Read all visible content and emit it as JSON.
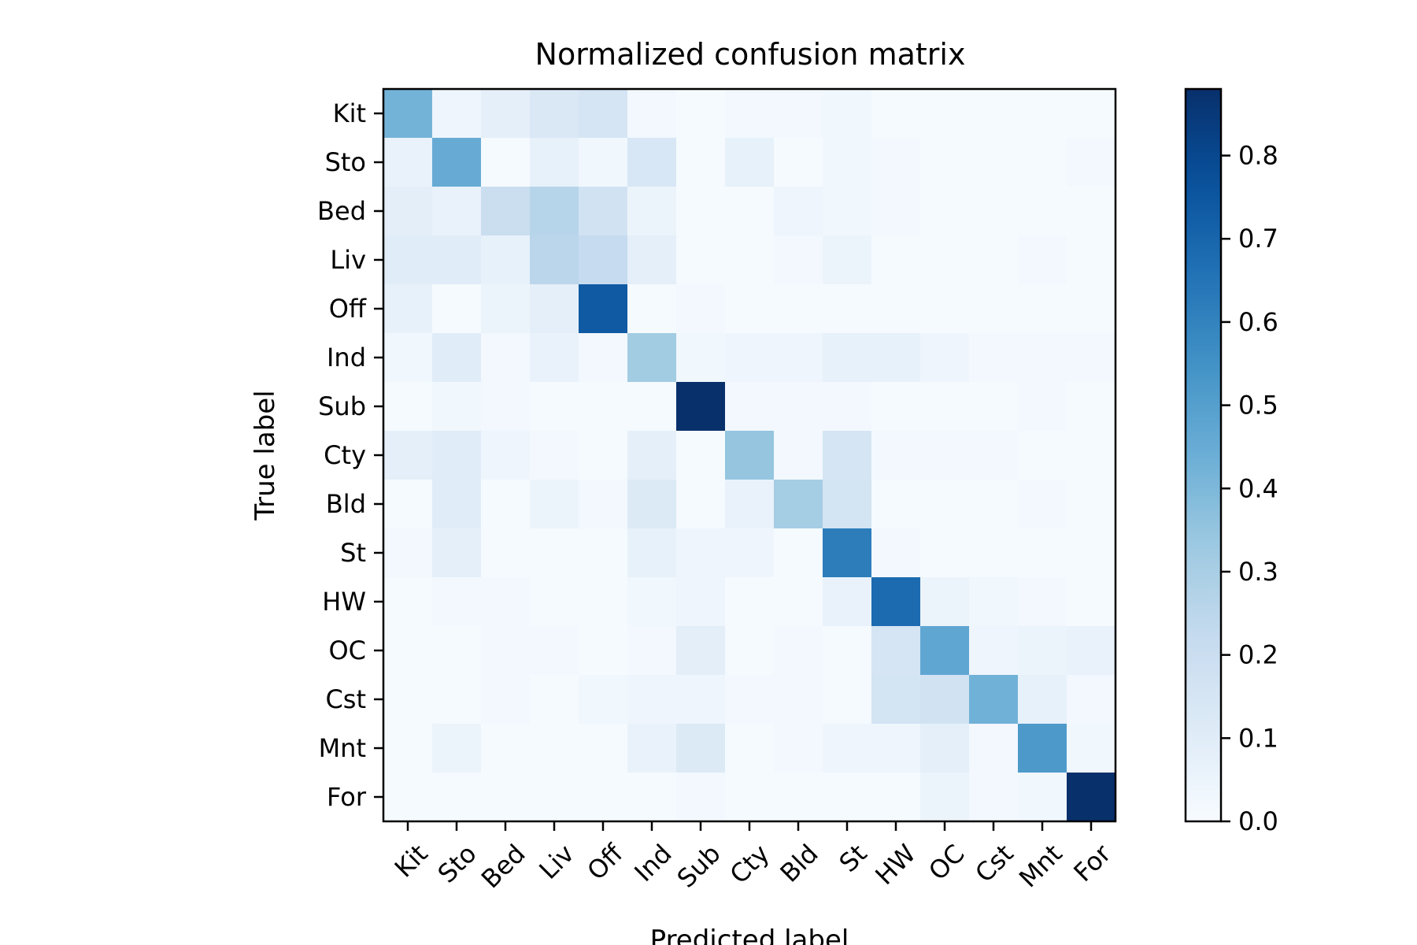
{
  "chart_data": {
    "type": "heatmap",
    "title": "Normalized confusion matrix",
    "xlabel": "Predicted label",
    "ylabel": "True label",
    "categories": [
      "Kit",
      "Sto",
      "Bed",
      "Liv",
      "Off",
      "Ind",
      "Sub",
      "Cty",
      "Bld",
      "St",
      "HW",
      "OC",
      "Cst",
      "Mnt",
      "For"
    ],
    "colorbar": {
      "min": 0.0,
      "max": 0.88,
      "ticks": [
        0.0,
        0.1,
        0.2,
        0.3,
        0.4,
        0.5,
        0.6,
        0.7,
        0.8
      ],
      "tick_labels": [
        "0.0",
        "0.1",
        "0.2",
        "0.3",
        "0.4",
        "0.5",
        "0.6",
        "0.7",
        "0.8"
      ]
    },
    "colormap": "Blues",
    "matrix": [
      [
        0.42,
        0.04,
        0.08,
        0.13,
        0.15,
        0.02,
        0.01,
        0.02,
        0.02,
        0.03,
        0.01,
        0.01,
        0.01,
        0.01,
        0.01
      ],
      [
        0.06,
        0.45,
        0.01,
        0.07,
        0.03,
        0.14,
        0.01,
        0.07,
        0.01,
        0.03,
        0.02,
        0.01,
        0.01,
        0.01,
        0.02
      ],
      [
        0.09,
        0.06,
        0.2,
        0.26,
        0.17,
        0.05,
        0.01,
        0.01,
        0.04,
        0.03,
        0.02,
        0.01,
        0.01,
        0.01,
        0.01
      ],
      [
        0.1,
        0.1,
        0.07,
        0.25,
        0.22,
        0.08,
        0.01,
        0.01,
        0.02,
        0.05,
        0.01,
        0.01,
        0.01,
        0.02,
        0.01
      ],
      [
        0.07,
        0.01,
        0.05,
        0.08,
        0.74,
        0.01,
        0.02,
        0.01,
        0.01,
        0.01,
        0.01,
        0.01,
        0.01,
        0.01,
        0.01
      ],
      [
        0.03,
        0.1,
        0.02,
        0.06,
        0.02,
        0.32,
        0.03,
        0.04,
        0.04,
        0.07,
        0.07,
        0.04,
        0.02,
        0.02,
        0.02
      ],
      [
        0.01,
        0.03,
        0.02,
        0.01,
        0.01,
        0.01,
        0.88,
        0.02,
        0.02,
        0.02,
        0.01,
        0.01,
        0.01,
        0.02,
        0.01
      ],
      [
        0.08,
        0.1,
        0.04,
        0.02,
        0.01,
        0.08,
        0.01,
        0.35,
        0.02,
        0.15,
        0.02,
        0.02,
        0.02,
        0.01,
        0.01
      ],
      [
        0.01,
        0.1,
        0.01,
        0.05,
        0.02,
        0.12,
        0.01,
        0.06,
        0.31,
        0.16,
        0.01,
        0.01,
        0.01,
        0.02,
        0.01
      ],
      [
        0.02,
        0.08,
        0.01,
        0.01,
        0.01,
        0.07,
        0.04,
        0.04,
        0.01,
        0.62,
        0.02,
        0.01,
        0.01,
        0.01,
        0.01
      ],
      [
        0.01,
        0.02,
        0.02,
        0.01,
        0.01,
        0.03,
        0.04,
        0.01,
        0.01,
        0.06,
        0.68,
        0.05,
        0.03,
        0.02,
        0.01
      ],
      [
        0.01,
        0.01,
        0.02,
        0.02,
        0.01,
        0.02,
        0.09,
        0.01,
        0.02,
        0.01,
        0.15,
        0.47,
        0.04,
        0.05,
        0.06
      ],
      [
        0.01,
        0.01,
        0.02,
        0.01,
        0.03,
        0.04,
        0.04,
        0.02,
        0.02,
        0.01,
        0.16,
        0.17,
        0.43,
        0.07,
        0.02
      ],
      [
        0.01,
        0.05,
        0.01,
        0.01,
        0.01,
        0.06,
        0.12,
        0.01,
        0.02,
        0.04,
        0.04,
        0.08,
        0.02,
        0.52,
        0.03
      ],
      [
        0.01,
        0.01,
        0.01,
        0.01,
        0.01,
        0.01,
        0.02,
        0.01,
        0.01,
        0.01,
        0.01,
        0.05,
        0.02,
        0.03,
        0.88
      ]
    ]
  }
}
